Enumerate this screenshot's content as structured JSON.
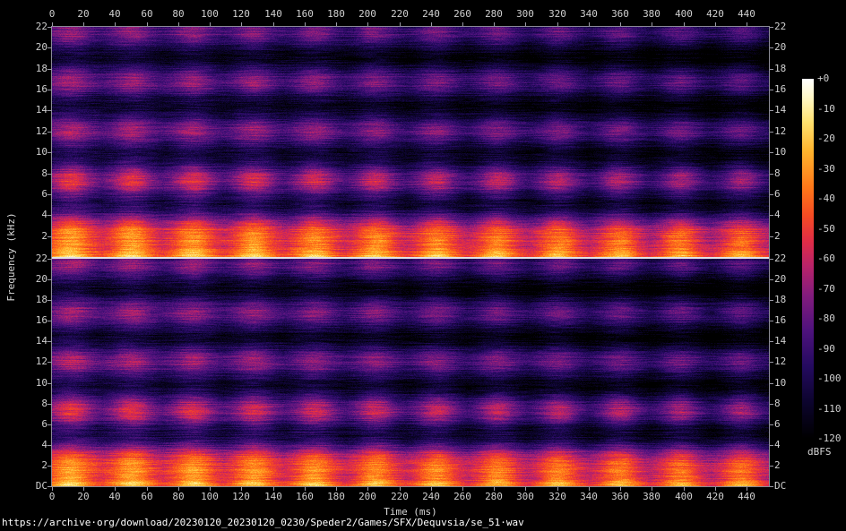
{
  "footer": {
    "url": "https://archive·org/download/20230120_20230120_0230/Speder2/Games/SFX/Dequvsia/se_51·wav"
  },
  "chart_data": {
    "type": "heatmap",
    "subtype": "audio-spectrogram",
    "title": "",
    "xlabel": "Time (ms)",
    "ylabel": "Frequency (kHz)",
    "colorbar_label": "dBFS",
    "channels": 2,
    "x_range_ms": [
      0,
      454
    ],
    "x_ticks": [
      0,
      20,
      40,
      60,
      80,
      100,
      120,
      140,
      160,
      180,
      200,
      220,
      240,
      260,
      280,
      300,
      320,
      340,
      360,
      380,
      400,
      420,
      440
    ],
    "y_range_khz": [
      0,
      22
    ],
    "y_ticks_khz": [
      22,
      20,
      18,
      16,
      14,
      12,
      10,
      8,
      6,
      4,
      2
    ],
    "y_dc_label": "DC",
    "colorbar_ticks": [
      "+0",
      "-10",
      "-20",
      "-30",
      "-40",
      "-50",
      "-60",
      "-70",
      "-80",
      "-90",
      "-100",
      "-110",
      "-120"
    ],
    "colorbar_range_db": [
      0,
      -120
    ],
    "palette_stops": [
      [
        0.0,
        0,
        0,
        0
      ],
      [
        0.1,
        12,
        4,
        45
      ],
      [
        0.2,
        36,
        10,
        95
      ],
      [
        0.3,
        78,
        18,
        125
      ],
      [
        0.4,
        132,
        28,
        125
      ],
      [
        0.48,
        185,
        35,
        105
      ],
      [
        0.55,
        225,
        45,
        70
      ],
      [
        0.62,
        245,
        75,
        35
      ],
      [
        0.7,
        255,
        120,
        25
      ],
      [
        0.8,
        255,
        180,
        45
      ],
      [
        0.88,
        255,
        225,
        110
      ],
      [
        0.95,
        255,
        248,
        200
      ],
      [
        1.0,
        255,
        255,
        255
      ]
    ],
    "model": {
      "seeds": [
        101,
        202
      ],
      "duration_ms": 454,
      "noise_floor_db": -105,
      "band_period_khz": 4.7,
      "band_bright_ref_khz": 21.5,
      "band_amp_db": 26,
      "band_burst_amp_db": 12,
      "burst_global_db": 8,
      "burst_first_ms": 12,
      "burst_period_ms": 38.6,
      "burst_count": 12,
      "burst_sigma_ms": 9,
      "low_band_amp_db": 68,
      "low_band_rolloff_khz": 2.6,
      "low_band_exp": 1.6,
      "low_burst_db": 14,
      "low_burst_rolloff_khz": 1.6,
      "mid_burst_db": 10,
      "mid_burst_center_khz": 7.2,
      "mid_burst_sigma_khz": 2.2,
      "hf_rolloff_db_per_khz": 0.35,
      "decay_db": 16,
      "low_decay_relief_db": 6
    }
  }
}
